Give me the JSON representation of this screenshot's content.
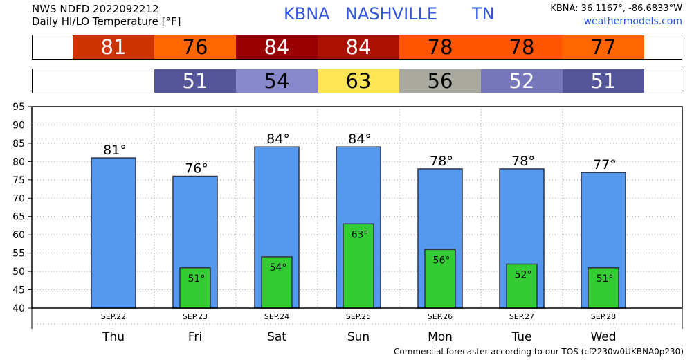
{
  "header": {
    "line1": "NWS NDFD 2022092212",
    "line2": "Daily HI/LO Temperature [°F]",
    "station_id": "KBNA",
    "station_name": "NASHVILLE",
    "state": "TN",
    "coords": "KBNA: 36.1167°, -86.6833°W",
    "site": "weathermodels.com"
  },
  "hi_band": [
    {
      "value": "81",
      "bg": "#cc3300",
      "fg": "#ffffff"
    },
    {
      "value": "76",
      "bg": "#ff6600",
      "fg": "#000000"
    },
    {
      "value": "84",
      "bg": "#990000",
      "fg": "#ffffff"
    },
    {
      "value": "84",
      "bg": "#aa1100",
      "fg": "#ffffff"
    },
    {
      "value": "78",
      "bg": "#ff5500",
      "fg": "#000000"
    },
    {
      "value": "78",
      "bg": "#ff5500",
      "fg": "#000000"
    },
    {
      "value": "77",
      "bg": "#ff6600",
      "fg": "#000000"
    }
  ],
  "lo_band": [
    {
      "value": "51",
      "bg": "#555599",
      "fg": "#ffffff"
    },
    {
      "value": "54",
      "bg": "#8888cc",
      "fg": "#000000"
    },
    {
      "value": "63",
      "bg": "#ffe455",
      "fg": "#000000"
    },
    {
      "value": "56",
      "bg": "#aaaaa0",
      "fg": "#000000"
    },
    {
      "value": "52",
      "bg": "#7777bb",
      "fg": "#ffffff"
    },
    {
      "value": "51",
      "bg": "#555599",
      "fg": "#ffffff"
    }
  ],
  "chart_data": {
    "type": "bar",
    "categories": [
      "Thu",
      "Fri",
      "Sat",
      "Sun",
      "Mon",
      "Tue",
      "Wed"
    ],
    "dates": [
      "SEP.22",
      "SEP.23",
      "SEP.24",
      "SEP.25",
      "SEP.26",
      "SEP.27",
      "SEP.28"
    ],
    "series": [
      {
        "values": [
          81,
          76,
          84,
          84,
          78,
          78,
          77
        ],
        "color": "#5599ee"
      },
      {
        "values": [
          null,
          51,
          54,
          63,
          56,
          52,
          51
        ],
        "color": "#33cc33"
      }
    ],
    "hi_labels": [
      "81°",
      "76°",
      "84°",
      "84°",
      "78°",
      "78°",
      "77°"
    ],
    "lo_labels": [
      "",
      "51°",
      "54°",
      "63°",
      "56°",
      "52°",
      "51°"
    ],
    "yticks": [
      "95",
      "90",
      "85",
      "80",
      "75",
      "70",
      "65",
      "60",
      "55",
      "50",
      "45",
      "40"
    ],
    "ylim": [
      40,
      95
    ],
    "grid": true
  },
  "footer": "Commercial forecaster according to our TOS (cf2230w0UKBNA0p230)"
}
